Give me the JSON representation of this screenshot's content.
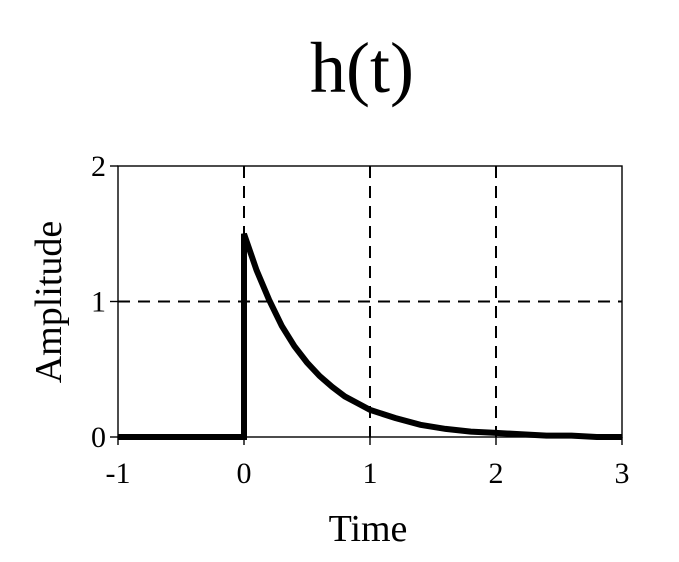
{
  "chart_data": {
    "type": "line",
    "title": "h(t)",
    "xlabel": "Time",
    "ylabel": "Amplitude",
    "xlim": [
      -1,
      3
    ],
    "ylim": [
      0,
      2
    ],
    "x_ticks": [
      -1,
      0,
      1,
      2,
      3
    ],
    "x_tick_labels": [
      "-1",
      "0",
      "1",
      "2",
      "3"
    ],
    "y_ticks": [
      0,
      1,
      2
    ],
    "y_tick_labels": [
      "0",
      "1",
      "2"
    ],
    "grid_x": [
      0,
      1,
      2
    ],
    "grid_y": [
      1
    ],
    "grid": "dashed",
    "series": [
      {
        "x": [
          -1,
          0,
          0,
          0.1,
          0.2,
          0.3,
          0.4,
          0.5,
          0.6,
          0.7,
          0.8,
          0.9,
          1.0,
          1.2,
          1.4,
          1.6,
          1.8,
          2.0,
          2.2,
          2.4,
          2.6,
          2.8,
          3.0
        ],
        "values": [
          0,
          0,
          1.5,
          1.23,
          1.01,
          0.82,
          0.67,
          0.55,
          0.45,
          0.37,
          0.3,
          0.25,
          0.2,
          0.14,
          0.09,
          0.06,
          0.04,
          0.03,
          0.02,
          0.01,
          0.01,
          0.0,
          0.0
        ],
        "color": "#000000"
      }
    ]
  }
}
